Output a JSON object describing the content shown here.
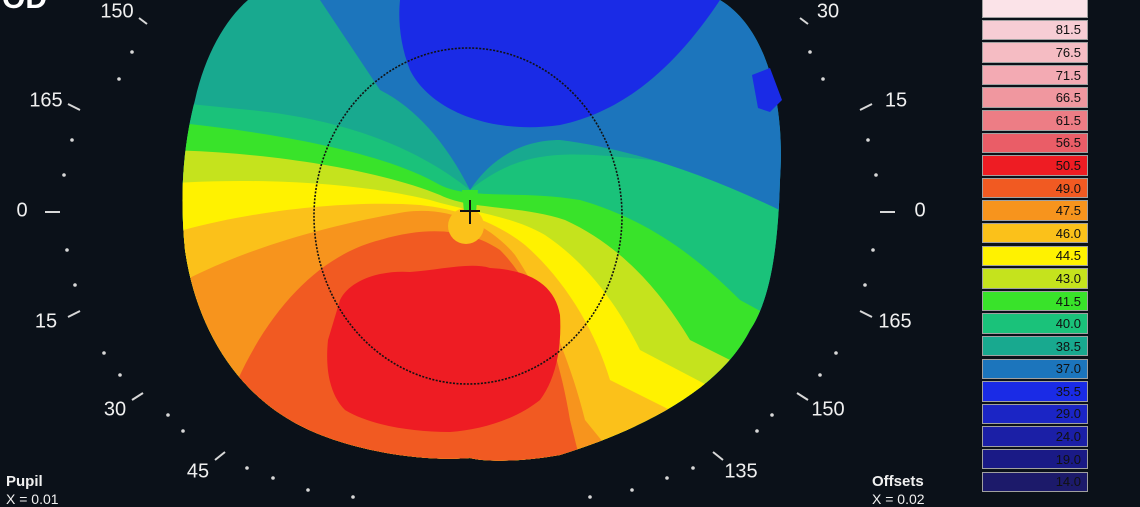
{
  "eye_label": "OD",
  "angle_labels": {
    "left_top": "150",
    "left_165": "165",
    "left_0": "0",
    "left_15": "15",
    "left_30": "30",
    "left_45": "45",
    "right_top": "30",
    "right_15": "15",
    "right_0": "0",
    "right_165": "165",
    "right_150": "150",
    "right_135": "135"
  },
  "bottom_left": {
    "label": "Pupil",
    "value": "X = 0.01"
  },
  "bottom_right": {
    "label": "Offsets",
    "value": "X = 0.02"
  },
  "legend": [
    {
      "value": "",
      "color": "#fbe3e8"
    },
    {
      "value": "81.5",
      "color": "#f7cdd4"
    },
    {
      "value": "76.5",
      "color": "#f5bcc3"
    },
    {
      "value": "71.5",
      "color": "#f3aab3"
    },
    {
      "value": "66.5",
      "color": "#f0979f"
    },
    {
      "value": "61.5",
      "color": "#ed7d85"
    },
    {
      "value": "56.5",
      "color": "#ea5d67"
    },
    {
      "value": "50.5",
      "color": "#ee1c23"
    },
    {
      "value": "49.0",
      "color": "#f15a22"
    },
    {
      "value": "47.5",
      "color": "#f7941d"
    },
    {
      "value": "46.0",
      "color": "#fbc11a"
    },
    {
      "value": "44.5",
      "color": "#fff200"
    },
    {
      "value": "43.0",
      "color": "#c5e31d"
    },
    {
      "value": "41.5",
      "color": "#39e32a"
    },
    {
      "value": "40.0",
      "color": "#1ac27a"
    },
    {
      "value": "38.5",
      "color": "#18a98f"
    },
    {
      "value": "37.0",
      "color": "#1c75bc"
    },
    {
      "value": "35.5",
      "color": "#1a2be6"
    },
    {
      "value": "29.0",
      "color": "#1b25c5"
    },
    {
      "value": "24.0",
      "color": "#1b1fa6"
    },
    {
      "value": "19.0",
      "color": "#1a1a86"
    },
    {
      "value": "14.0",
      "color": "#1c1a6a"
    }
  ]
}
